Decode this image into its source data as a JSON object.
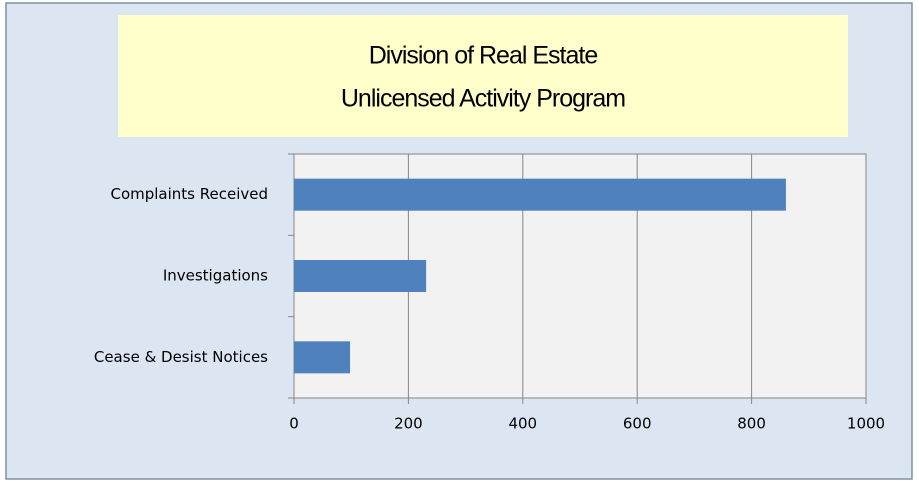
{
  "chart_data": {
    "type": "hbar",
    "title": [
      "Division of Real Estate",
      "Unlicensed Activity Program"
    ],
    "categories": [
      "Complaints Received",
      "Investigations",
      "Cease & Desist Notices"
    ],
    "values": [
      860,
      231,
      98
    ],
    "color": "#4f81bd",
    "xlim": [
      0,
      1000
    ],
    "xticks": [
      0,
      200,
      400,
      600,
      800,
      1000
    ],
    "grid": true
  }
}
